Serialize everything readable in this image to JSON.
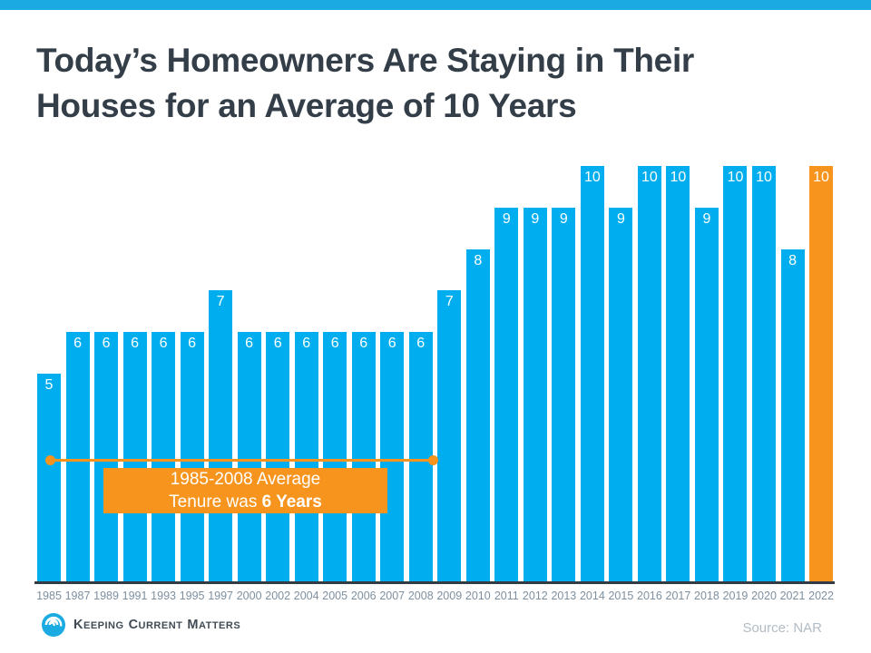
{
  "page": {
    "strip_color": "#1BAAE2",
    "bar_color": "#00AEEF",
    "highlight_color": "#F7941E",
    "title_color": "#333E48"
  },
  "header": {
    "title_line1": "Today’s Homeowners Are Staying in Their",
    "title_line2": "Houses for an Average of 10 Years"
  },
  "chart_data": {
    "type": "bar",
    "title": "Today’s Homeowners Are Staying in Their Houses for an Average of 10 Years",
    "categories": [
      "1985",
      "1987",
      "1989",
      "1991",
      "1993",
      "1995",
      "1997",
      "2000",
      "2002",
      "2004",
      "2005",
      "2006",
      "2007",
      "2008",
      "2009",
      "2010",
      "2011",
      "2012",
      "2013",
      "2014",
      "2015",
      "2016",
      "2017",
      "2018",
      "2019",
      "2020",
      "2021",
      "2022"
    ],
    "values": [
      5,
      6,
      6,
      6,
      6,
      6,
      7,
      6,
      6,
      6,
      6,
      6,
      6,
      6,
      7,
      8,
      9,
      9,
      9,
      10,
      9,
      10,
      10,
      9,
      10,
      10,
      8,
      10
    ],
    "highlight_index": 27,
    "value_labels_shown": true,
    "xlabel": "",
    "ylabel": "",
    "ylim": [
      0,
      10
    ],
    "grid": false,
    "legend": false,
    "annotation": {
      "span_from": "1985",
      "span_to": "2008",
      "line1": "1985-2008 Average",
      "line2_prefix": "Tenure was ",
      "line2_bold": "6 Years"
    }
  },
  "footer": {
    "logo_words": [
      "Keeping",
      "Current",
      "Matters"
    ],
    "source": "Source: NAR"
  }
}
